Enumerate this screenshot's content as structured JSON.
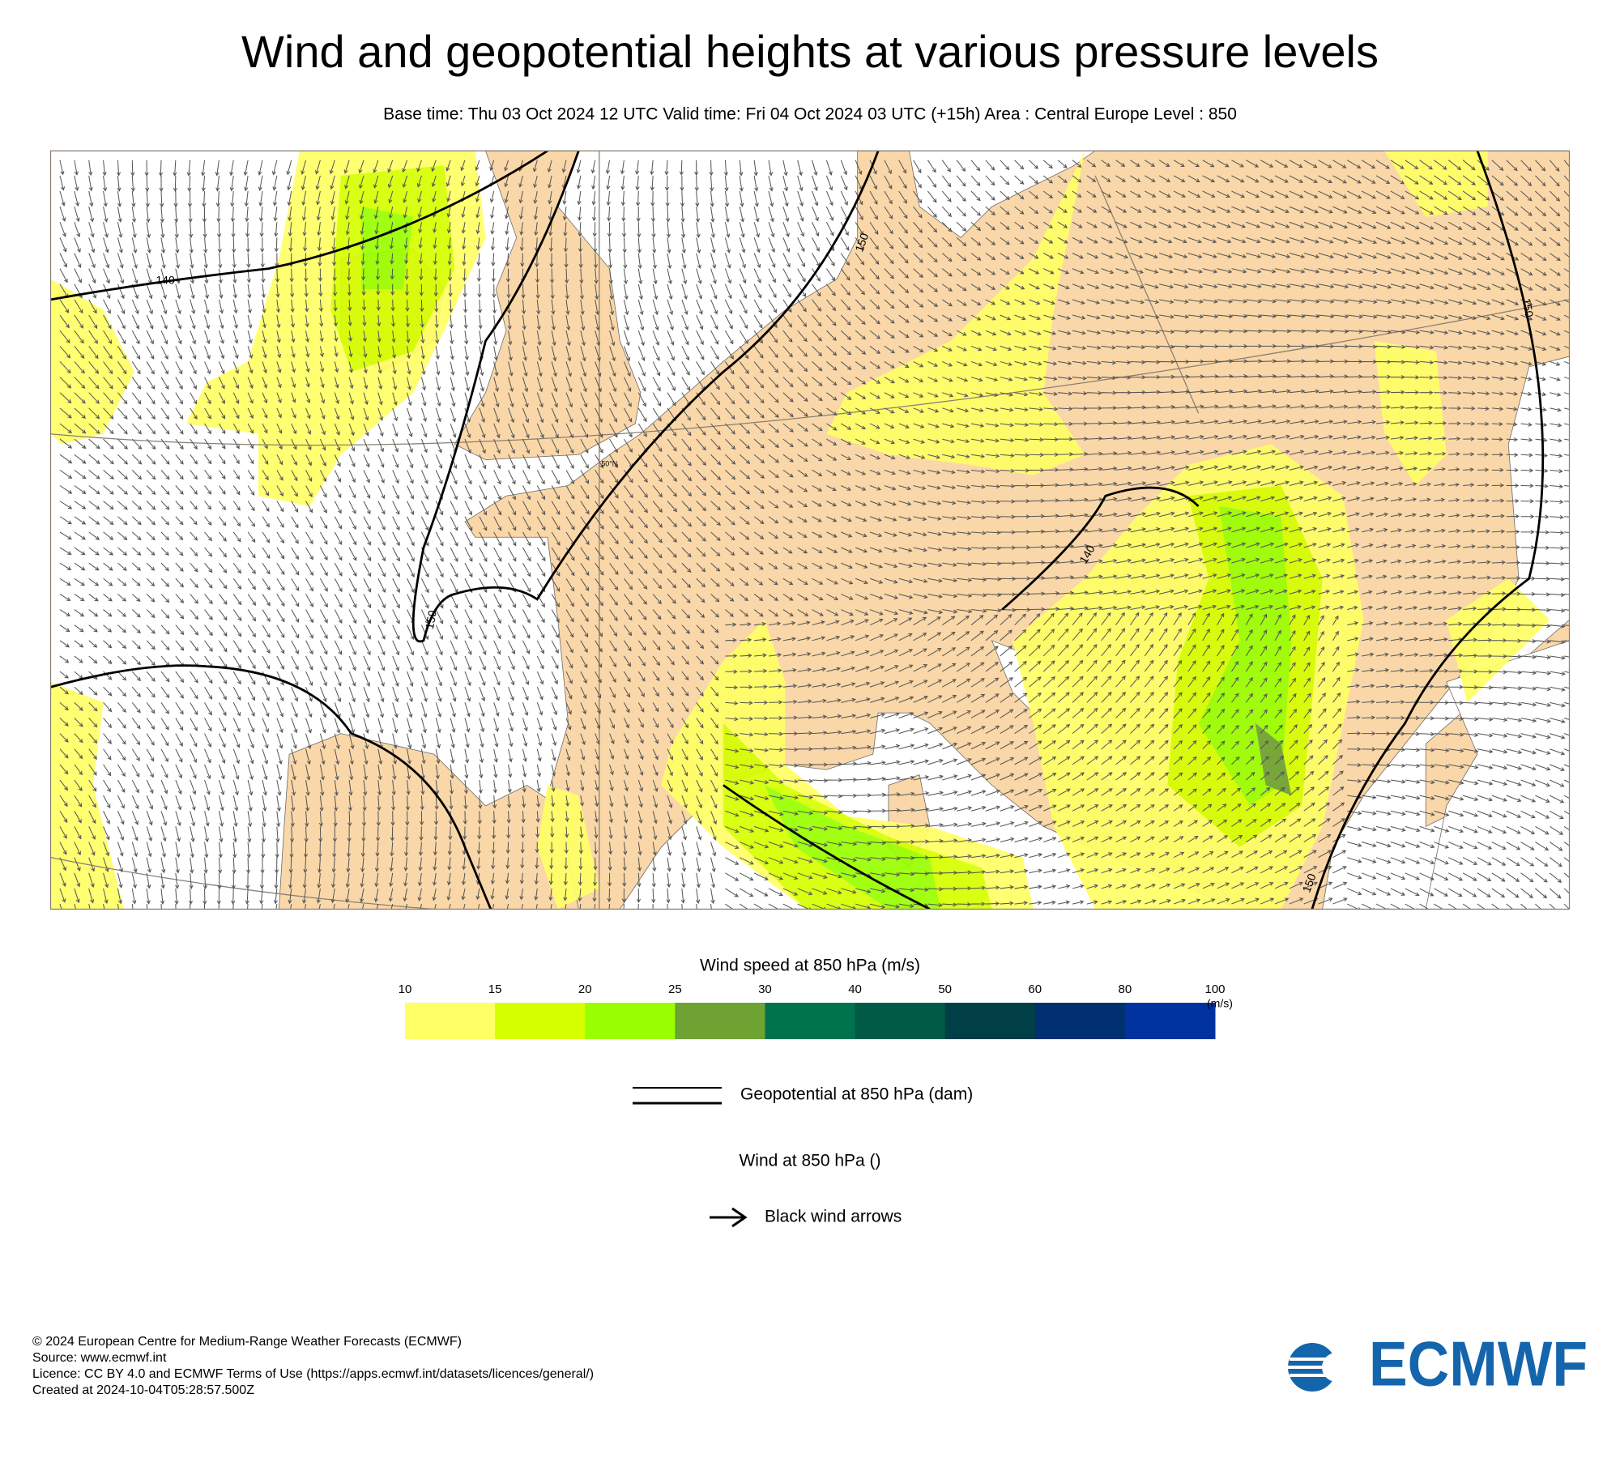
{
  "header": {
    "title": "Wind and geopotential heights at various pressure levels",
    "subtitle": "Base time: Thu 03 Oct 2024 12 UTC Valid time: Fri 04 Oct 2024 03 UTC (+15h) Area : Central Europe Level : 850"
  },
  "map": {
    "contour_labels": [
      "140",
      "150",
      "150",
      "140",
      "150",
      "150"
    ],
    "graticule_label": "50°N"
  },
  "colorbar": {
    "title": "Wind speed at 850 hPa (m/s)",
    "ticks": [
      10,
      15,
      20,
      25,
      30,
      40,
      50,
      60,
      80,
      100
    ],
    "unit": "(m/s)",
    "colors": [
      "#ffff66",
      "#d6ff00",
      "#99ff00",
      "#6ea232",
      "#00734c",
      "#005a46",
      "#003f45",
      "#003070",
      "#0033a0"
    ]
  },
  "legend": {
    "geopotential": "Geopotential at 850 hPa (dam)",
    "wind_title": "Wind at 850 hPa ()",
    "wind_arrows": "Black wind arrows"
  },
  "footer": {
    "lines": [
      "© 2024 European Centre for Medium-Range Weather Forecasts (ECMWF)",
      "Source: www.ecmwf.int",
      "Licence: CC BY 4.0 and ECMWF Terms of Use (https://apps.ecmwf.int/datasets/licences/general/)",
      "Created at 2024-10-04T05:28:57.500Z"
    ]
  },
  "logo": {
    "text": "ECMWF"
  }
}
